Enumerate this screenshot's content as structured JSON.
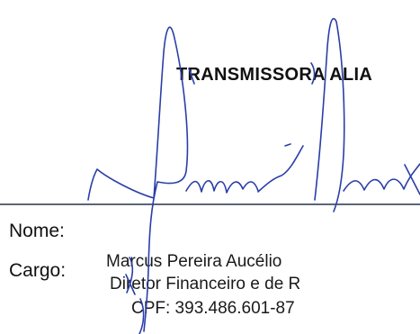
{
  "document": {
    "company_name": "TRANSMISSORA ALIA",
    "labels": {
      "nome": "Nome:",
      "cargo": "Cargo:"
    },
    "signer": {
      "name": "Marcus Pereira Aucélio",
      "position": "Diretor Financeiro e de R",
      "cpf": "CPF: 393.486.601-87"
    }
  },
  "colors": {
    "ink": "#2a3ea8",
    "signature_line": "#5b6578"
  }
}
